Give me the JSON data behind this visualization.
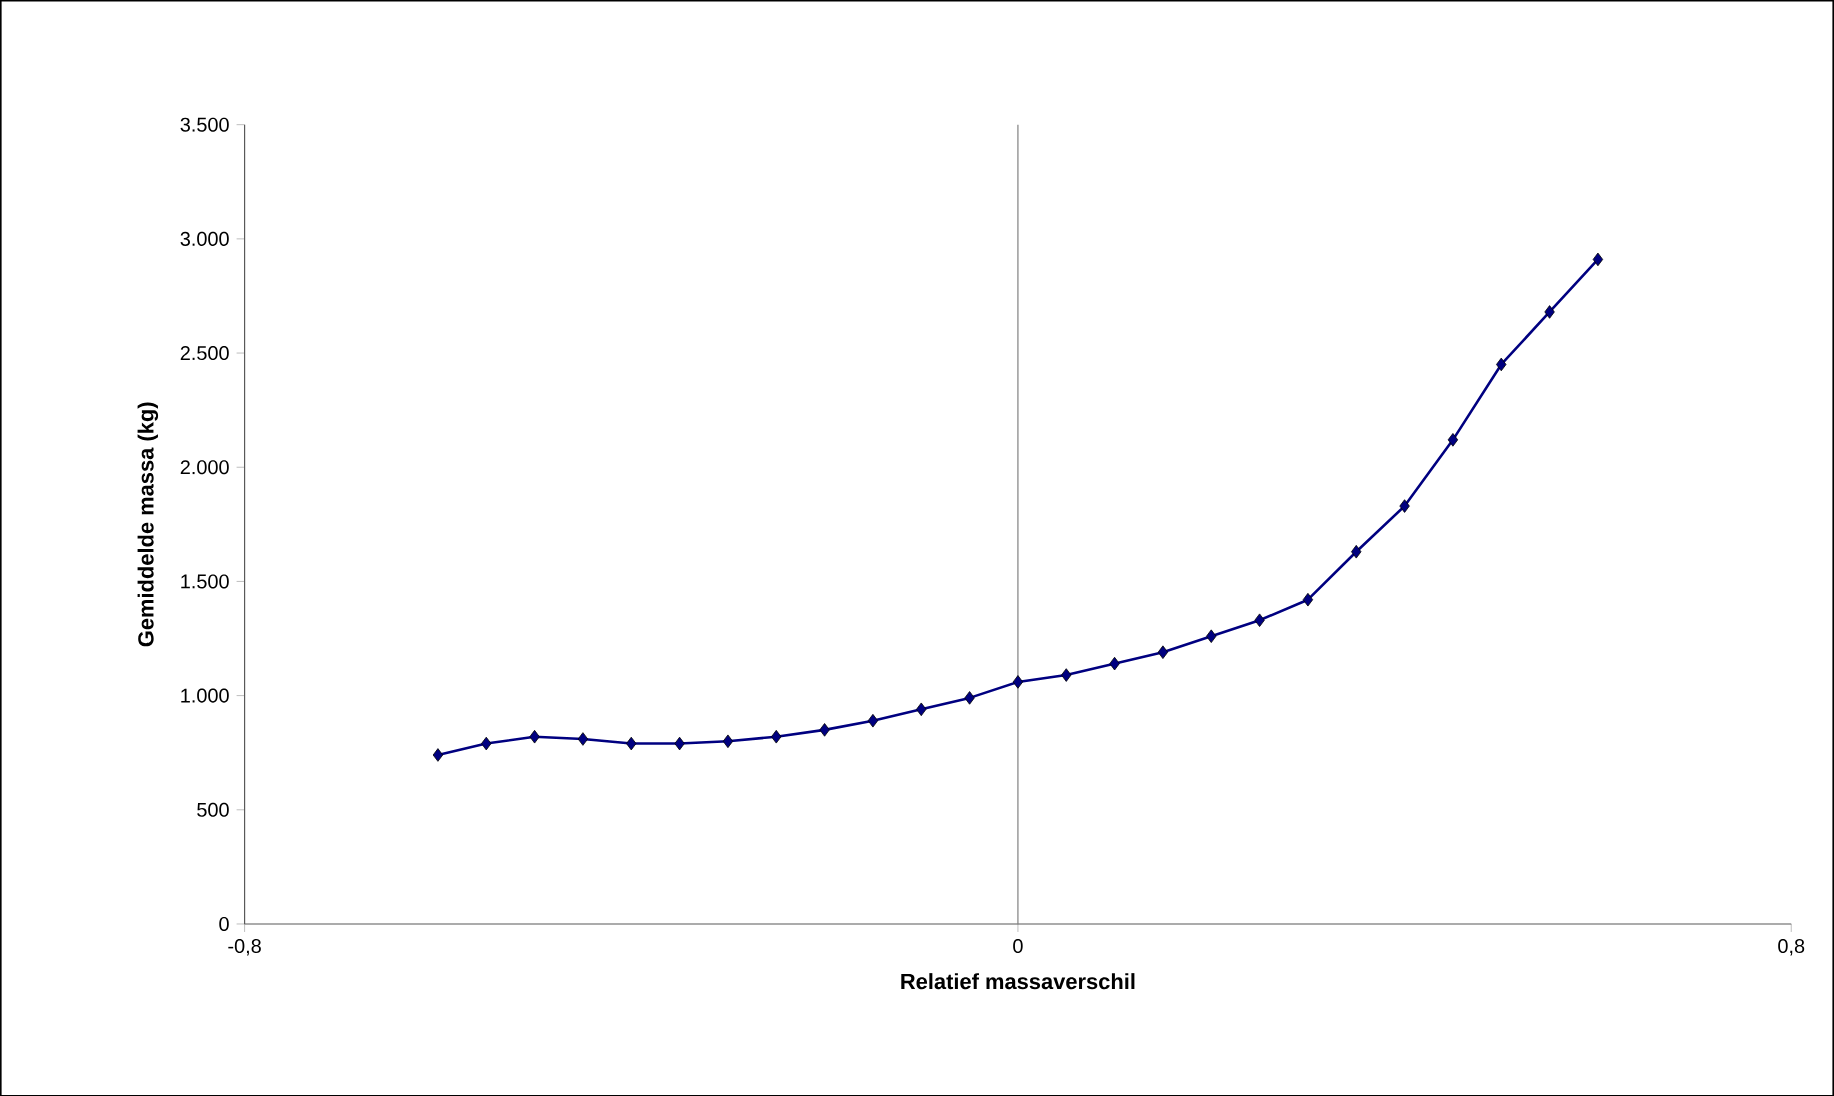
{
  "chart_data": {
    "type": "line",
    "xlabel": "Relatief massaverschil",
    "ylabel": "Gemiddelde massa (kg)",
    "x": [
      -0.6,
      -0.55,
      -0.5,
      -0.45,
      -0.4,
      -0.35,
      -0.3,
      -0.25,
      -0.2,
      -0.15,
      -0.1,
      -0.05,
      0,
      0.05,
      0.1,
      0.15,
      0.2,
      0.25,
      0.3,
      0.35,
      0.4,
      0.45,
      0.5,
      0.55,
      0.6
    ],
    "series": [
      {
        "color": "#000080",
        "values": [
          740,
          790,
          820,
          810,
          790,
          790,
          800,
          820,
          850,
          890,
          940,
          990,
          1060,
          1090,
          1140,
          1190,
          1260,
          1330,
          1420,
          1630,
          1830,
          2120,
          2450,
          2680,
          2910
        ]
      }
    ],
    "xlim": [
      -0.8,
      0.8
    ],
    "ylim": [
      0,
      3500
    ],
    "xticks": [
      {
        "value": -0.8,
        "label": "-0,8"
      },
      0,
      {
        "value": 0.8,
        "label": "0,8"
      }
    ],
    "yticks": [
      0,
      500,
      {
        "value": 1000,
        "label": "1.000"
      },
      {
        "value": 1500,
        "label": "1.500"
      },
      {
        "value": 2000,
        "label": "2.000"
      },
      {
        "value": 2500,
        "label": "2.500"
      },
      {
        "value": 3000,
        "label": "3.000"
      },
      {
        "value": 3500,
        "label": "3.500"
      }
    ],
    "ref_lines": [
      {
        "axis": "x",
        "value": 0,
        "color": "#808080"
      }
    ],
    "marker": "diamond",
    "line_style": "solid"
  }
}
